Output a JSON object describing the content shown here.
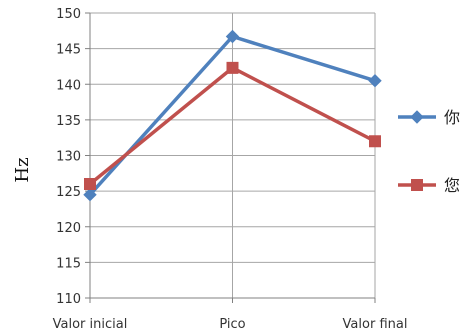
{
  "chart_data": {
    "type": "line",
    "title": "",
    "xlabel": "",
    "ylabel": "Hz",
    "categories": [
      "Valor inicial",
      "Pico",
      "Valor final"
    ],
    "ylim": [
      110,
      150
    ],
    "ytick_step": 5,
    "grid": true,
    "legend_position": "right",
    "series": [
      {
        "name": "你",
        "values": [
          124.5,
          146.7,
          140.5
        ],
        "color": "#4f81bd",
        "marker": "diamond"
      },
      {
        "name": "您",
        "values": [
          126.0,
          142.3,
          132.0
        ],
        "color": "#c0504d",
        "marker": "square"
      }
    ]
  }
}
